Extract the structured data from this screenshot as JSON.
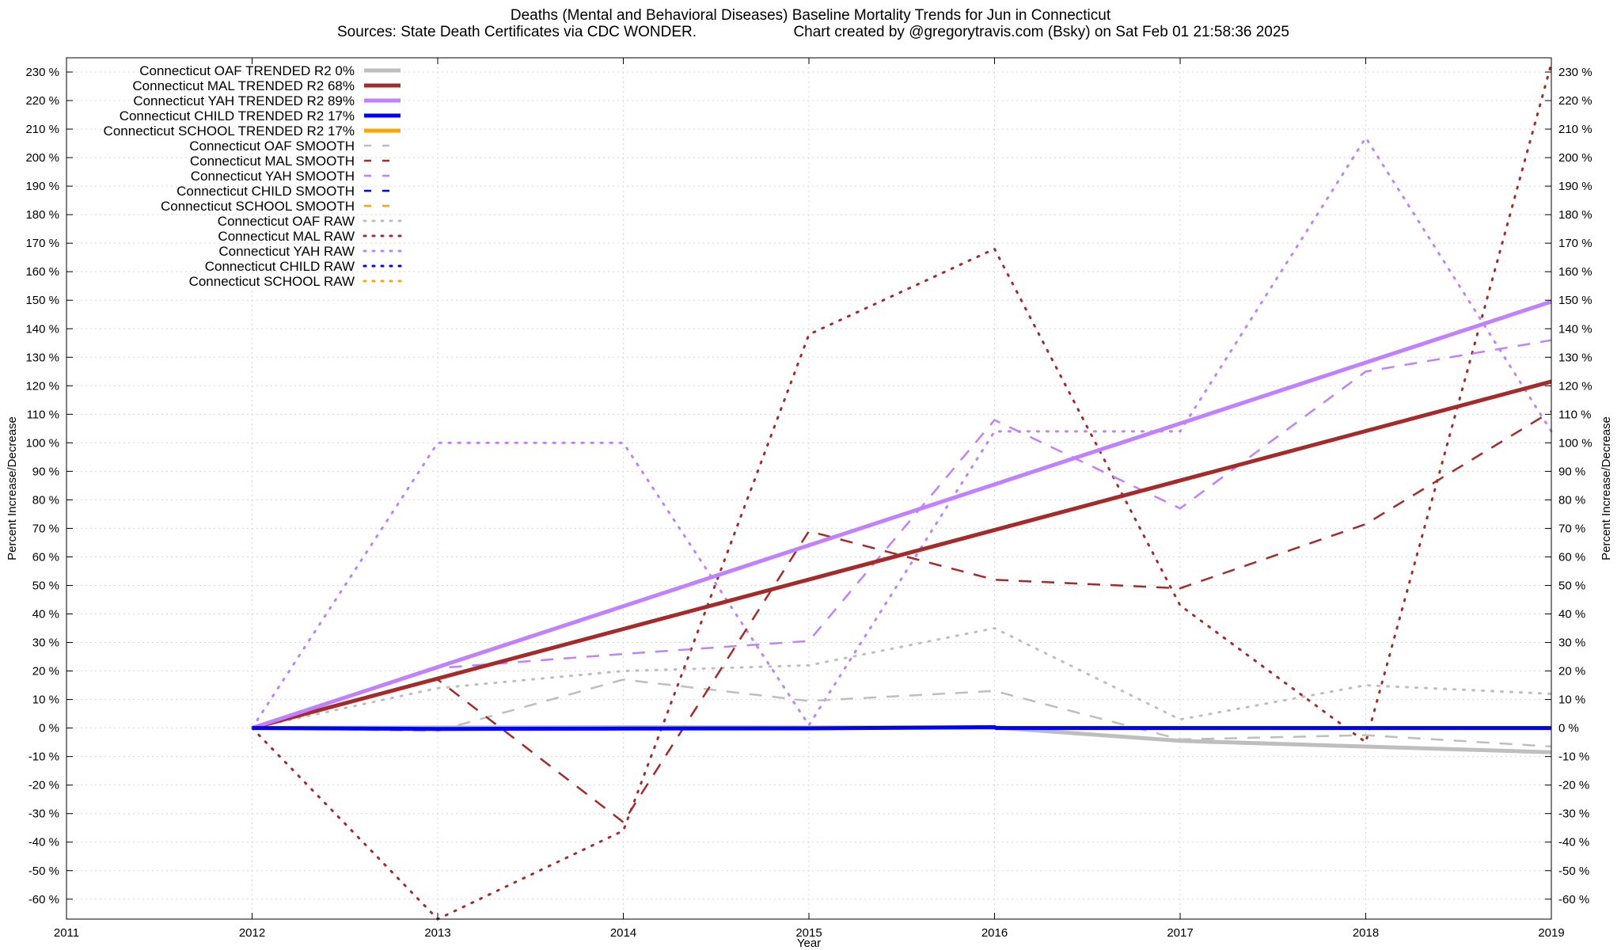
{
  "chart_data": {
    "type": "line",
    "title": "Deaths (Mental and Behavioral Diseases)  Baseline Mortality Trends for Jun in Connecticut",
    "subtitle_left": "Sources: State Death Certificates via CDC WONDER.",
    "subtitle_right": "Chart created by @gregorytravis.com (Bsky) on Sat Feb 01 21:58:36 2025",
    "xlabel": "Year",
    "ylabel": "Percent Increase/Decrease",
    "y2label": "Percent Increase/Decrease",
    "xlim": [
      2011,
      2019
    ],
    "ylim": [
      -67,
      235
    ],
    "x_ticks": [
      2011,
      2012,
      2013,
      2014,
      2015,
      2016,
      2017,
      2018,
      2019
    ],
    "y_ticks": [
      -60,
      -50,
      -40,
      -30,
      -20,
      -10,
      0,
      10,
      20,
      30,
      40,
      50,
      60,
      70,
      80,
      90,
      100,
      110,
      120,
      130,
      140,
      150,
      160,
      170,
      180,
      190,
      200,
      210,
      220,
      230
    ],
    "y_tick_suffix": " %",
    "grid": true,
    "legend_position": "top-left",
    "colors": {
      "OAF": "#bebebe",
      "MAL": "#a52a2a",
      "YAH": "#c080ff",
      "CHILD": "#0000ff",
      "SCHOOL": "#ffa500"
    },
    "series": [
      {
        "name": "Connecticut OAF TRENDED R2  0%",
        "group": "OAF",
        "style": "trend",
        "x": [
          2012,
          2013,
          2014,
          2015,
          2016,
          2017,
          2018,
          2019
        ],
        "y": [
          0,
          0.2,
          0.3,
          0.2,
          0.2,
          -4.5,
          -6.5,
          -8.5
        ]
      },
      {
        "name": "Connecticut MAL TRENDED R2  68%",
        "group": "MAL",
        "style": "trend",
        "x": [
          2012,
          2019
        ],
        "y": [
          0,
          121.5
        ]
      },
      {
        "name": "Connecticut YAH TRENDED R2  89%",
        "group": "YAH",
        "style": "trend",
        "x": [
          2012,
          2019
        ],
        "y": [
          0,
          149.5
        ]
      },
      {
        "name": "Connecticut CHILD TRENDED R2  17%",
        "group": "CHILD",
        "style": "trend",
        "x": [
          2012,
          2013,
          2014,
          2015,
          2016,
          2016.01,
          2017,
          2018,
          2019
        ],
        "y": [
          0,
          -0.3,
          -0.2,
          -0.1,
          0.3,
          0,
          0,
          0,
          0
        ]
      },
      {
        "name": "Connecticut SCHOOL TRENDED R2  17%",
        "group": "SCHOOL",
        "style": "trend",
        "x": [],
        "y": []
      },
      {
        "name": "Connecticut OAF SMOOTH",
        "group": "OAF",
        "style": "smooth",
        "x": [
          2012,
          2013,
          2014,
          2015,
          2016,
          2017,
          2018,
          2019
        ],
        "y": [
          0,
          -1,
          17,
          9.5,
          13,
          -4,
          -2.5,
          -6.5
        ]
      },
      {
        "name": "Connecticut MAL SMOOTH",
        "group": "MAL",
        "style": "smooth",
        "x": [
          2012,
          2013,
          2014,
          2015,
          2016,
          2017,
          2018,
          2019
        ],
        "y": [
          0,
          17,
          -33,
          69,
          52,
          49,
          71.5,
          111
        ]
      },
      {
        "name": "Connecticut YAH SMOOTH",
        "group": "YAH",
        "style": "smooth",
        "x": [
          2012,
          2013,
          2014,
          2015,
          2016,
          2017,
          2018,
          2019
        ],
        "y": [
          0,
          21,
          26,
          30.5,
          108,
          77,
          125,
          136
        ]
      },
      {
        "name": "Connecticut CHILD SMOOTH",
        "group": "CHILD",
        "style": "smooth",
        "x": [],
        "y": []
      },
      {
        "name": "Connecticut SCHOOL SMOOTH",
        "group": "SCHOOL",
        "style": "smooth",
        "x": [],
        "y": []
      },
      {
        "name": "Connecticut OAF RAW",
        "group": "OAF",
        "style": "raw",
        "x": [
          2012,
          2013,
          2014,
          2015,
          2016,
          2017,
          2018,
          2019
        ],
        "y": [
          0,
          14,
          20,
          22,
          35,
          3,
          15,
          12
        ]
      },
      {
        "name": "Connecticut MAL RAW",
        "group": "MAL",
        "style": "raw",
        "x": [
          2012,
          2013,
          2014,
          2015,
          2016,
          2017,
          2018,
          2019
        ],
        "y": [
          0,
          -67,
          -36,
          138,
          168,
          43,
          -5,
          233
        ]
      },
      {
        "name": "Connecticut YAH RAW",
        "group": "YAH",
        "style": "raw",
        "x": [
          2012,
          2013,
          2014,
          2015,
          2016,
          2017,
          2018,
          2019
        ],
        "y": [
          0,
          100,
          100,
          1,
          104,
          104,
          207,
          104
        ]
      },
      {
        "name": "Connecticut CHILD RAW",
        "group": "CHILD",
        "style": "raw",
        "x": [],
        "y": []
      },
      {
        "name": "Connecticut SCHOOL RAW",
        "group": "SCHOOL",
        "style": "raw",
        "x": [],
        "y": []
      }
    ]
  }
}
